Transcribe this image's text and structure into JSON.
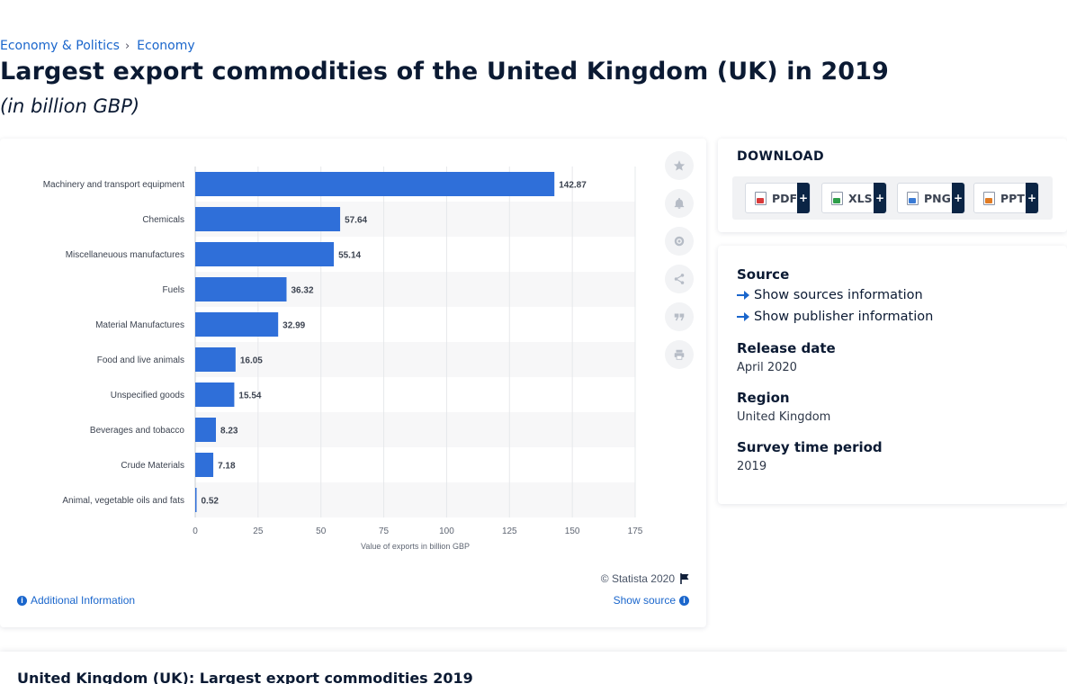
{
  "breadcrumb": {
    "item1": "Economy & Politics",
    "sep": "›",
    "item2": "Economy"
  },
  "title": "Largest export commodities of the United Kingdom (UK) in 2019",
  "subtitle": "(in billion GBP)",
  "chart_data": {
    "type": "bar",
    "orientation": "horizontal",
    "categories": [
      "Machinery and transport equipment",
      "Chemicals",
      "Miscellaneuous manufactures",
      "Fuels",
      "Material Manufactures",
      "Food and live animals",
      "Unspecified goods",
      "Beverages and tobacco",
      "Crude Materials",
      "Animal, vegetable oils and fats"
    ],
    "values": [
      142.87,
      57.64,
      55.14,
      36.32,
      32.99,
      16.05,
      15.54,
      8.23,
      7.18,
      0.52
    ],
    "value_labels": [
      "142.87",
      "57.64",
      "55.14",
      "36.32",
      "32.99",
      "16.05",
      "15.54",
      "8.23",
      "7.18",
      "0.52"
    ],
    "xticks": [
      "0",
      "25",
      "50",
      "75",
      "100",
      "125",
      "150",
      "175"
    ],
    "xlim": [
      0,
      175
    ],
    "xlabel": "Value of exports in billion GBP",
    "bar_color": "#2f6fd9",
    "grid": true
  },
  "toolbar": {
    "icons": [
      "star-icon",
      "bell-icon",
      "gear-icon",
      "share-icon",
      "quote-icon",
      "print-icon"
    ]
  },
  "footer": {
    "copyright": "© Statista 2020",
    "additional": "Additional Information",
    "show_source": "Show source"
  },
  "download": {
    "title": "DOWNLOAD",
    "buttons": [
      {
        "label": "PDF",
        "color": "#d93a3a"
      },
      {
        "label": "XLS",
        "color": "#2e9e4a"
      },
      {
        "label": "PNG",
        "color": "#3a7bd5"
      },
      {
        "label": "PPT",
        "color": "#e07b24"
      }
    ],
    "plus": "+"
  },
  "meta": {
    "source_h": "Source",
    "sources_link": "Show sources information",
    "publisher_link": "Show publisher information",
    "release_h": "Release date",
    "release_v": "April 2020",
    "region_h": "Region",
    "region_v": "United Kingdom",
    "survey_h": "Survey time period",
    "survey_v": "2019"
  },
  "bottom_title": "United Kingdom (UK): Largest export commodities 2019"
}
